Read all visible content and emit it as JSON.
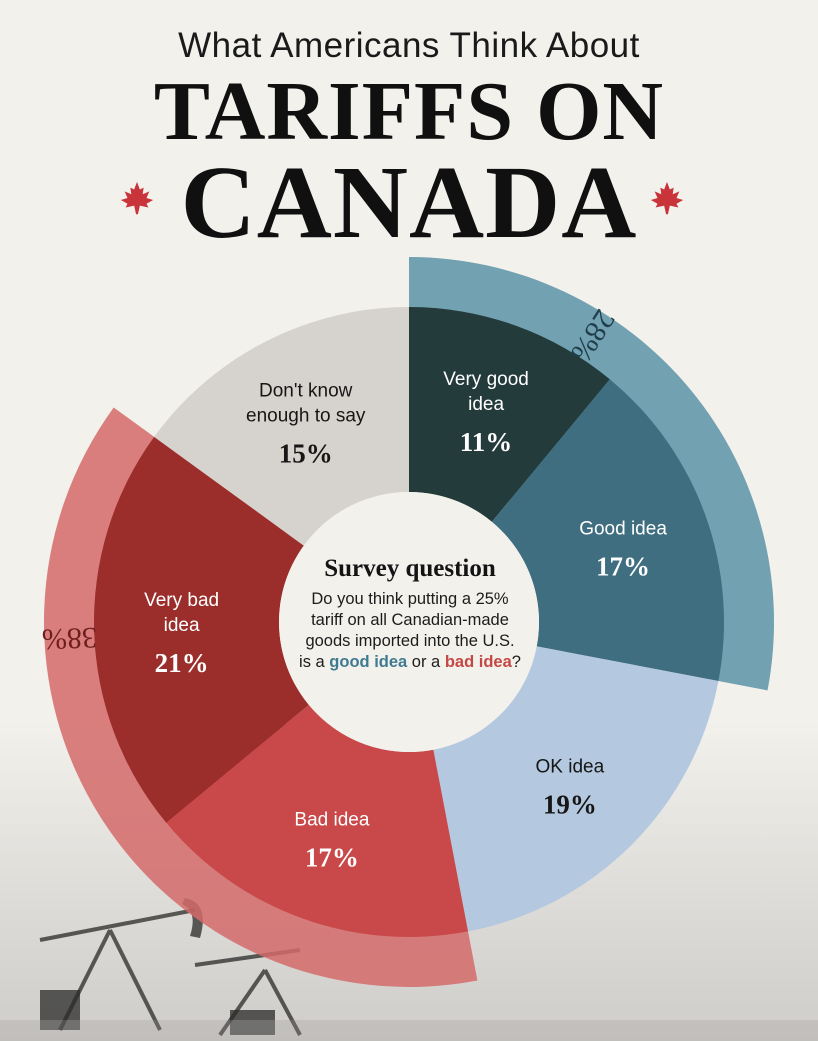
{
  "title": {
    "line1": "What Americans Think About",
    "line2": "TARIFFS ON",
    "line3": "CANADA"
  },
  "icons": {
    "left_leaf": "maple-leaf-icon",
    "right_leaf": "maple-leaf-icon",
    "background": "oil-pumpjack-silhouette"
  },
  "colors": {
    "very_good": "#233b3a",
    "good": "#3f6e80",
    "ok": "#b4c8e0",
    "bad": "#c9494a",
    "very_bad": "#9b2e2b",
    "dont_know": "#d6d3ce",
    "outer_good": "#5b93a8",
    "outer_bad": "#d46a6a",
    "maple": "#c9343a"
  },
  "center": {
    "heading": "Survey question",
    "body_line1": "Do you think putting a 25%",
    "body_line2": "tariff on all Canadian-made",
    "body_line3": "goods imported into the U.S.",
    "body_line4_a": "is a ",
    "good_word": "good idea",
    "body_line4_b": " or a ",
    "bad_word": "bad idea",
    "body_line4_c": "?"
  },
  "chart_data": {
    "type": "pie",
    "subtype": "donut",
    "start_angle_deg": 0,
    "direction": "clockwise",
    "slices": [
      {
        "label": "Very good idea",
        "value": 11,
        "value_label": "11%",
        "color": "#233b3a",
        "text_color": "#ffffff"
      },
      {
        "label": "Good idea",
        "value": 17,
        "value_label": "17%",
        "color": "#3f6e80",
        "text_color": "#ffffff"
      },
      {
        "label": "OK idea",
        "value": 19,
        "value_label": "19%",
        "color": "#b4c8e0",
        "text_color": "#161616"
      },
      {
        "label": "Bad idea",
        "value": 17,
        "value_label": "17%",
        "color": "#c9494a",
        "text_color": "#ffffff"
      },
      {
        "label": "Very bad idea",
        "value": 21,
        "value_label": "21%",
        "color": "#9b2e2b",
        "text_color": "#ffffff"
      },
      {
        "label": "Don't know enough to say",
        "value": 15,
        "value_label": "15%",
        "color": "#d6d3ce",
        "text_color": "#161616"
      }
    ],
    "slice_label_lines": [
      [
        "Very good",
        "idea"
      ],
      [
        "Good idea"
      ],
      [
        "OK idea"
      ],
      [
        "Bad idea"
      ],
      [
        "Very bad",
        "idea"
      ],
      [
        "Don't know",
        "enough to say"
      ]
    ],
    "group_arcs": [
      {
        "value": 28,
        "value_label": "28%",
        "slices": [
          "Very good idea",
          "Good idea"
        ],
        "color": "#5b93a8"
      },
      {
        "value": 38,
        "value_label": "38%",
        "slices": [
          "Bad idea",
          "Very bad idea"
        ],
        "color": "#d46a6a"
      }
    ]
  }
}
